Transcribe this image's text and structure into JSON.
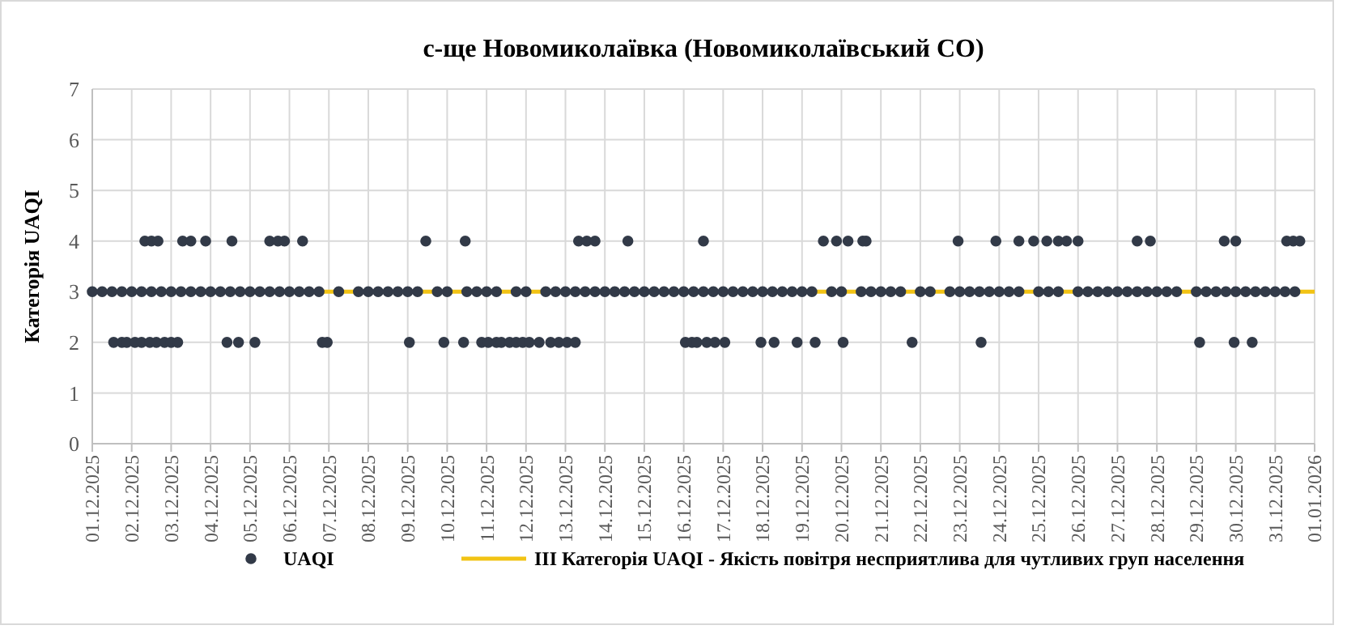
{
  "chart_data": {
    "type": "scatter",
    "title": "с-ще Новомиколаївка (Новомиколаївський СО)",
    "ylabel": "Категорія UAQI",
    "xlim": [
      "2025-12-01",
      "2026-01-01"
    ],
    "ylim": [
      0,
      7
    ],
    "yticks": [
      0,
      1,
      2,
      3,
      4,
      5,
      6,
      7
    ],
    "xticks": [
      {
        "value": "2025-12-01",
        "label": "01.12.2025"
      },
      {
        "value": "2025-12-02",
        "label": "02.12.2025"
      },
      {
        "value": "2025-12-03",
        "label": "03.12.2025"
      },
      {
        "value": "2025-12-04",
        "label": "04.12.2025"
      },
      {
        "value": "2025-12-05",
        "label": "05.12.2025"
      },
      {
        "value": "2025-12-06",
        "label": "06.12.2025"
      },
      {
        "value": "2025-12-07",
        "label": "07.12.2025"
      },
      {
        "value": "2025-12-08",
        "label": "08.12.2025"
      },
      {
        "value": "2025-12-09",
        "label": "09.12.2025"
      },
      {
        "value": "2025-12-10",
        "label": "10.12.2025"
      },
      {
        "value": "2025-12-11",
        "label": "11.12.2025"
      },
      {
        "value": "2025-12-12",
        "label": "12.12.2025"
      },
      {
        "value": "2025-12-13",
        "label": "13.12.2025"
      },
      {
        "value": "2025-12-14",
        "label": "14.12.2025"
      },
      {
        "value": "2025-12-15",
        "label": "15.12.2025"
      },
      {
        "value": "2025-12-16",
        "label": "16.12.2025"
      },
      {
        "value": "2025-12-17",
        "label": "17.12.2025"
      },
      {
        "value": "2025-12-18",
        "label": "18.12.2025"
      },
      {
        "value": "2025-12-19",
        "label": "19.12.2025"
      },
      {
        "value": "2025-12-20",
        "label": "20.12.2025"
      },
      {
        "value": "2025-12-21",
        "label": "21.12.2025"
      },
      {
        "value": "2025-12-22",
        "label": "22.12.2025"
      },
      {
        "value": "2025-12-23",
        "label": "23.12.2025"
      },
      {
        "value": "2025-12-24",
        "label": "24.12.2025"
      },
      {
        "value": "2025-12-25",
        "label": "25.12.2025"
      },
      {
        "value": "2025-12-26",
        "label": "26.12.2025"
      },
      {
        "value": "2025-12-27",
        "label": "27.12.2025"
      },
      {
        "value": "2025-12-28",
        "label": "28.12.2025"
      },
      {
        "value": "2025-12-29",
        "label": "29.12.2025"
      },
      {
        "value": "2025-12-30",
        "label": "30.12.2025"
      },
      {
        "value": "2025-12-31",
        "label": "31.12.2025"
      },
      {
        "value": "2026-01-01",
        "label": "01.01.2026"
      }
    ],
    "grid": true,
    "legend": "bottom",
    "marker": "circle",
    "ref_lines": [
      {
        "axis": "y",
        "value": 3,
        "label": "III Категорія UAQI - Якість повітря несприятлива для чутливих груп населення",
        "color": "#f2c314"
      }
    ],
    "series": [
      {
        "name": "UAQI",
        "color": "#323a48",
        "x": [
          "2025-12-01T00:00",
          "2025-12-01T06:00",
          "2025-12-01T12:00",
          "2025-12-01T18:00",
          "2025-12-02T00:00",
          "2025-12-02T06:00",
          "2025-12-02T12:00",
          "2025-12-02T18:00",
          "2025-12-03T00:00",
          "2025-12-03T06:00",
          "2025-12-03T12:00",
          "2025-12-03T18:00",
          "2025-12-04T00:00",
          "2025-12-04T06:00",
          "2025-12-04T12:00",
          "2025-12-04T18:00",
          "2025-12-05T00:00",
          "2025-12-05T06:00",
          "2025-12-05T12:00",
          "2025-12-05T18:00",
          "2025-12-06T00:00",
          "2025-12-06T06:00",
          "2025-12-06T12:00",
          "2025-12-06T18:00",
          "2025-12-07T06:00",
          "2025-12-07T18:00",
          "2025-12-08T00:00",
          "2025-12-08T06:00",
          "2025-12-08T12:00",
          "2025-12-08T18:00",
          "2025-12-09T00:00",
          "2025-12-09T06:00",
          "2025-12-09T18:00",
          "2025-12-10T00:00",
          "2025-12-10T12:00",
          "2025-12-10T18:00",
          "2025-12-11T00:00",
          "2025-12-11T06:00",
          "2025-12-11T18:00",
          "2025-12-12T00:00",
          "2025-12-12T12:00",
          "2025-12-12T18:00",
          "2025-12-13T00:00",
          "2025-12-13T06:00",
          "2025-12-13T12:00",
          "2025-12-13T18:00",
          "2025-12-14T00:00",
          "2025-12-14T06:00",
          "2025-12-14T12:00",
          "2025-12-14T18:00",
          "2025-12-15T00:00",
          "2025-12-15T06:00",
          "2025-12-15T12:00",
          "2025-12-15T18:00",
          "2025-12-16T00:00",
          "2025-12-16T06:00",
          "2025-12-16T12:00",
          "2025-12-16T18:00",
          "2025-12-17T00:00",
          "2025-12-17T06:00",
          "2025-12-17T12:00",
          "2025-12-17T18:00",
          "2025-12-18T00:00",
          "2025-12-18T06:00",
          "2025-12-18T12:00",
          "2025-12-18T18:00",
          "2025-12-19T00:00",
          "2025-12-19T06:00",
          "2025-12-19T18:00",
          "2025-12-20T00:00",
          "2025-12-20T12:00",
          "2025-12-20T18:00",
          "2025-12-21T00:00",
          "2025-12-21T06:00",
          "2025-12-21T12:00",
          "2025-12-22T00:00",
          "2025-12-22T06:00",
          "2025-12-22T18:00",
          "2025-12-23T00:00",
          "2025-12-23T06:00",
          "2025-12-23T12:00",
          "2025-12-23T18:00",
          "2025-12-24T00:00",
          "2025-12-24T06:00",
          "2025-12-24T12:00",
          "2025-12-25T00:00",
          "2025-12-25T06:00",
          "2025-12-25T12:00",
          "2025-12-26T00:00",
          "2025-12-26T06:00",
          "2025-12-26T12:00",
          "2025-12-26T18:00",
          "2025-12-27T00:00",
          "2025-12-27T06:00",
          "2025-12-27T12:00",
          "2025-12-27T18:00",
          "2025-12-28T00:00",
          "2025-12-28T06:00",
          "2025-12-28T12:00",
          "2025-12-29T00:00",
          "2025-12-29T06:00",
          "2025-12-29T12:00",
          "2025-12-29T18:00",
          "2025-12-30T00:00",
          "2025-12-30T06:00",
          "2025-12-30T12:00",
          "2025-12-30T18:00",
          "2025-12-31T00:00",
          "2025-12-31T06:00",
          "2025-12-31T12:00",
          "2025-12-01T13:00",
          "2025-12-01T18:00",
          "2025-12-01T21:00",
          "2025-12-02T02:00",
          "2025-12-02T06:00",
          "2025-12-02T11:00",
          "2025-12-02T15:00",
          "2025-12-02T20:00",
          "2025-12-03T00:00",
          "2025-12-03T04:00",
          "2025-12-04T10:00",
          "2025-12-04T17:00",
          "2025-12-05T03:00",
          "2025-12-06T20:00",
          "2025-12-06T23:00",
          "2025-12-09T01:00",
          "2025-12-09T22:00",
          "2025-12-10T10:00",
          "2025-12-10T21:00",
          "2025-12-11T01:00",
          "2025-12-11T06:00",
          "2025-12-11T09:00",
          "2025-12-11T14:00",
          "2025-12-11T18:00",
          "2025-12-11T22:00",
          "2025-12-12T02:00",
          "2025-12-12T08:00",
          "2025-12-12T15:00",
          "2025-12-12T20:00",
          "2025-12-13T01:00",
          "2025-12-13T06:00",
          "2025-12-16T01:00",
          "2025-12-16T05:00",
          "2025-12-16T08:00",
          "2025-12-16T14:00",
          "2025-12-16T19:00",
          "2025-12-17T01:00",
          "2025-12-17T23:00",
          "2025-12-18T07:00",
          "2025-12-18T21:00",
          "2025-12-19T08:00",
          "2025-12-20T01:00",
          "2025-12-21T19:00",
          "2025-12-23T13:00",
          "2025-12-29T02:00",
          "2025-12-29T23:00",
          "2025-12-30T10:00",
          "2025-12-02T08:00",
          "2025-12-02T12:00",
          "2025-12-02T16:00",
          "2025-12-03T07:00",
          "2025-12-03T12:00",
          "2025-12-03T21:00",
          "2025-12-04T13:00",
          "2025-12-05T12:00",
          "2025-12-05T17:00",
          "2025-12-05T21:00",
          "2025-12-06T08:00",
          "2025-12-09T11:00",
          "2025-12-10T11:00",
          "2025-12-13T08:00",
          "2025-12-13T13:00",
          "2025-12-13T18:00",
          "2025-12-14T14:00",
          "2025-12-16T12:00",
          "2025-12-19T13:00",
          "2025-12-19T21:00",
          "2025-12-20T04:00",
          "2025-12-20T13:00",
          "2025-12-20T15:00",
          "2025-12-22T23:00",
          "2025-12-23T22:00",
          "2025-12-24T12:00",
          "2025-12-24T21:00",
          "2025-12-25T05:00",
          "2025-12-25T12:00",
          "2025-12-25T17:00",
          "2025-12-26T00:00",
          "2025-12-27T12:00",
          "2025-12-27T20:00",
          "2025-12-29T17:00",
          "2025-12-30T00:00",
          "2025-12-31T07:00",
          "2025-12-31T11:00",
          "2025-12-31T15:00"
        ],
        "values": [
          3,
          3,
          3,
          3,
          3,
          3,
          3,
          3,
          3,
          3,
          3,
          3,
          3,
          3,
          3,
          3,
          3,
          3,
          3,
          3,
          3,
          3,
          3,
          3,
          3,
          3,
          3,
          3,
          3,
          3,
          3,
          3,
          3,
          3,
          3,
          3,
          3,
          3,
          3,
          3,
          3,
          3,
          3,
          3,
          3,
          3,
          3,
          3,
          3,
          3,
          3,
          3,
          3,
          3,
          3,
          3,
          3,
          3,
          3,
          3,
          3,
          3,
          3,
          3,
          3,
          3,
          3,
          3,
          3,
          3,
          3,
          3,
          3,
          3,
          3,
          3,
          3,
          3,
          3,
          3,
          3,
          3,
          3,
          3,
          3,
          3,
          3,
          3,
          3,
          3,
          3,
          3,
          3,
          3,
          3,
          3,
          3,
          3,
          3,
          3,
          3,
          3,
          3,
          3,
          3,
          3,
          3,
          3,
          3,
          3,
          2,
          2,
          2,
          2,
          2,
          2,
          2,
          2,
          2,
          2,
          2,
          2,
          2,
          2,
          2,
          2,
          2,
          2,
          2,
          2,
          2,
          2,
          2,
          2,
          2,
          2,
          2,
          2,
          2,
          2,
          2,
          2,
          2,
          2,
          2,
          2,
          2,
          2,
          2,
          2,
          2,
          2,
          2,
          2,
          2,
          2,
          2,
          4,
          4,
          4,
          4,
          4,
          4,
          4,
          4,
          4,
          4,
          4,
          4,
          4,
          4,
          4,
          4,
          4,
          4,
          4,
          4,
          4,
          4,
          4,
          4,
          4,
          4,
          4,
          4,
          4,
          4,
          4,
          4,
          4,
          4,
          4,
          4,
          4,
          4
        ]
      }
    ]
  }
}
